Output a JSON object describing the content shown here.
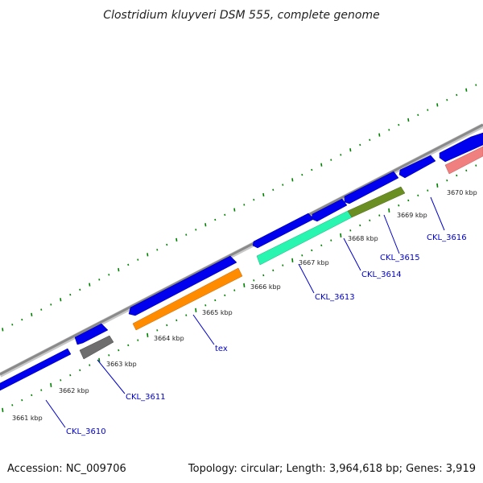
{
  "map": {
    "title": "Clostridium kluyveri DSM 555, complete genome",
    "accession_text": "Accession: NC_009706",
    "summary_text": "Topology: circular; Length: 3,964,618 bp; Genes: 3,919",
    "colors": {
      "backbone": "#8a8a8a",
      "tick": "#008000",
      "cds": "#0000ee",
      "label": "#0000cc",
      "tex": "#ff8c00",
      "CKL_3611": "#6e6e6e",
      "CKL_3613": "#2af5b0",
      "CKL_3614": "#6b8e23",
      "CKL_3616": "#f08080"
    },
    "scale_labels": [
      "3661 kbp",
      "3662 kbp",
      "3663 kbp",
      "3664 kbp",
      "3665 kbp",
      "3666 kbp",
      "3667 kbp",
      "3668 kbp",
      "3669 kbp",
      "3670 kbp"
    ],
    "gene_labels": [
      "CKL_3610",
      "CKL_3611",
      "tex",
      "CKL_3613",
      "CKL_3614",
      "CKL_3615",
      "CKL_3616"
    ]
  }
}
